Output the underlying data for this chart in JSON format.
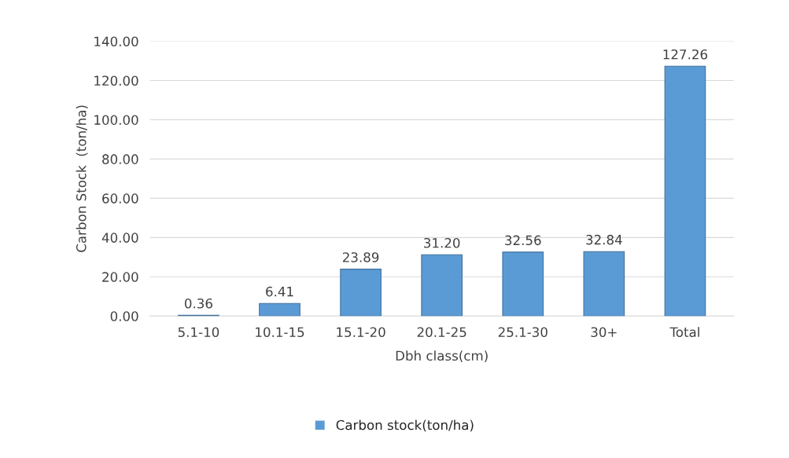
{
  "chart_data": {
    "type": "bar",
    "xlabel": "Dbh class(cm)",
    "ylabel": "Carbon Stock  (ton/ha)",
    "categories": [
      "5.1-10",
      "10.1-15",
      "15.1-20",
      "20.1-25",
      "25.1-30",
      "30+",
      "Total"
    ],
    "series": [
      {
        "name": "Carbon stock(ton/ha)",
        "color": "#5b9bd5",
        "values": [
          0.36,
          6.41,
          23.89,
          31.2,
          32.56,
          32.84,
          127.26
        ],
        "value_labels": [
          "0.36",
          "6.41",
          "23.89",
          "31.20",
          "32.56",
          "32.84",
          "127.26"
        ]
      }
    ],
    "ylim": [
      0,
      140
    ],
    "yticks": [
      {
        "value": 0,
        "label": "0.00"
      },
      {
        "value": 20,
        "label": "20.00"
      },
      {
        "value": 40,
        "label": "40.00"
      },
      {
        "value": 60,
        "label": "60.00"
      },
      {
        "value": 80,
        "label": "80.00"
      },
      {
        "value": 100,
        "label": "100.00"
      },
      {
        "value": 120,
        "label": "120.00"
      },
      {
        "value": 140,
        "label": "140.00"
      }
    ],
    "grid": "y",
    "legend": "bottom"
  }
}
